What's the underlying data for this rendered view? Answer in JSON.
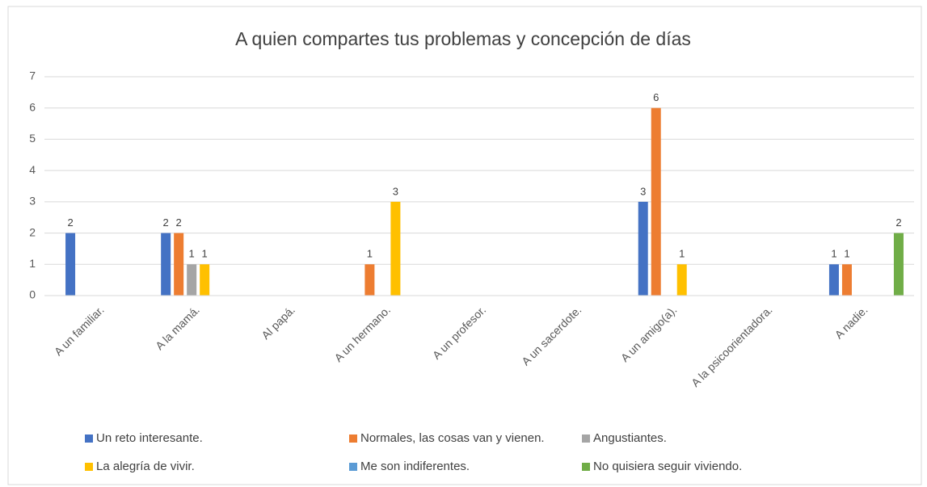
{
  "chart_data": {
    "type": "bar",
    "title": "A quien compartes tus problemas y concepción de días",
    "categories": [
      "A un familiar.",
      "A la mamá.",
      "Al papá.",
      "A un hermano.",
      "A un profesor.",
      "A un sacerdote.",
      "A un amigo(a).",
      "A la psicoorientadora.",
      "A nadie."
    ],
    "series": [
      {
        "name": "Un reto interesante.",
        "color": "#4472c4",
        "values": [
          2,
          2,
          null,
          null,
          null,
          null,
          3,
          null,
          1
        ]
      },
      {
        "name": "Normales, las cosas van y vienen.",
        "color": "#ed7d31",
        "values": [
          null,
          2,
          null,
          1,
          null,
          null,
          6,
          null,
          1
        ]
      },
      {
        "name": "Angustiantes.",
        "color": "#a5a5a5",
        "values": [
          null,
          1,
          null,
          null,
          null,
          null,
          null,
          null,
          null
        ]
      },
      {
        "name": "La alegría de vivir.",
        "color": "#ffc000",
        "values": [
          null,
          1,
          null,
          3,
          null,
          null,
          1,
          null,
          null
        ]
      },
      {
        "name": "Me son indiferentes.",
        "color": "#5b9bd5",
        "values": [
          null,
          null,
          null,
          null,
          null,
          null,
          null,
          null,
          null
        ]
      },
      {
        "name": "No quisiera seguir viviendo.",
        "color": "#70ad47",
        "values": [
          null,
          null,
          null,
          null,
          null,
          null,
          null,
          null,
          2
        ]
      }
    ],
    "ylim": [
      0,
      7
    ],
    "yticks": [
      0,
      1,
      2,
      3,
      4,
      5,
      6,
      7
    ],
    "grid": true,
    "legend": "bottom",
    "data_labels": true
  }
}
